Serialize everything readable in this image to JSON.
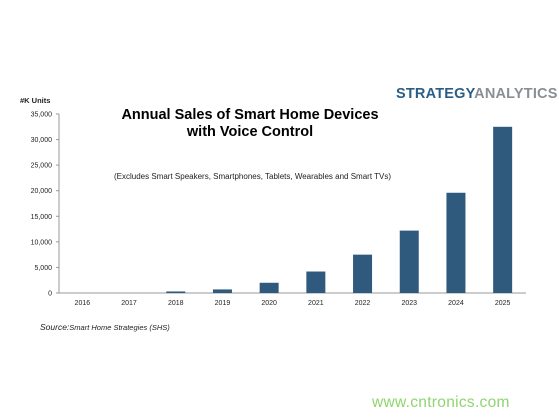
{
  "brand": {
    "part1": "STRATEGY",
    "part2": "ANALYTICS"
  },
  "title_line1": "Annual Sales of Smart Home Devices",
  "title_line2": "with Voice Control",
  "subtitle": "(Excludes Smart Speakers, Smartphones, Tablets, Wearables and Smart TVs)",
  "source": {
    "label": "Source:",
    "text": "Smart Home Strategies (SHS)"
  },
  "watermark": "www.cntronics.com",
  "colors": {
    "bar": "#2f5a7e",
    "axis": "#999999",
    "brand_blue": "#2b5e86",
    "brand_gray": "#8a8f94",
    "watermark": "#8fd46e"
  },
  "chart_data": {
    "type": "bar",
    "title": "Annual Sales of Smart Home Devices with Voice Control",
    "ylabel": "#K Units",
    "xlabel": "",
    "categories": [
      "2016",
      "2017",
      "2018",
      "2019",
      "2020",
      "2021",
      "2022",
      "2023",
      "2024",
      "2025"
    ],
    "values": [
      0,
      0,
      300,
      700,
      2000,
      4200,
      7500,
      12200,
      19600,
      32500
    ],
    "ylim": [
      0,
      35000
    ],
    "yticks": [
      "0",
      "5,000",
      "10,000",
      "15,000",
      "20,000",
      "25,000",
      "30,000",
      "35,000"
    ],
    "ytick_values": [
      0,
      5000,
      10000,
      15000,
      20000,
      25000,
      30000,
      35000
    ],
    "grid": false,
    "legend": "none"
  }
}
